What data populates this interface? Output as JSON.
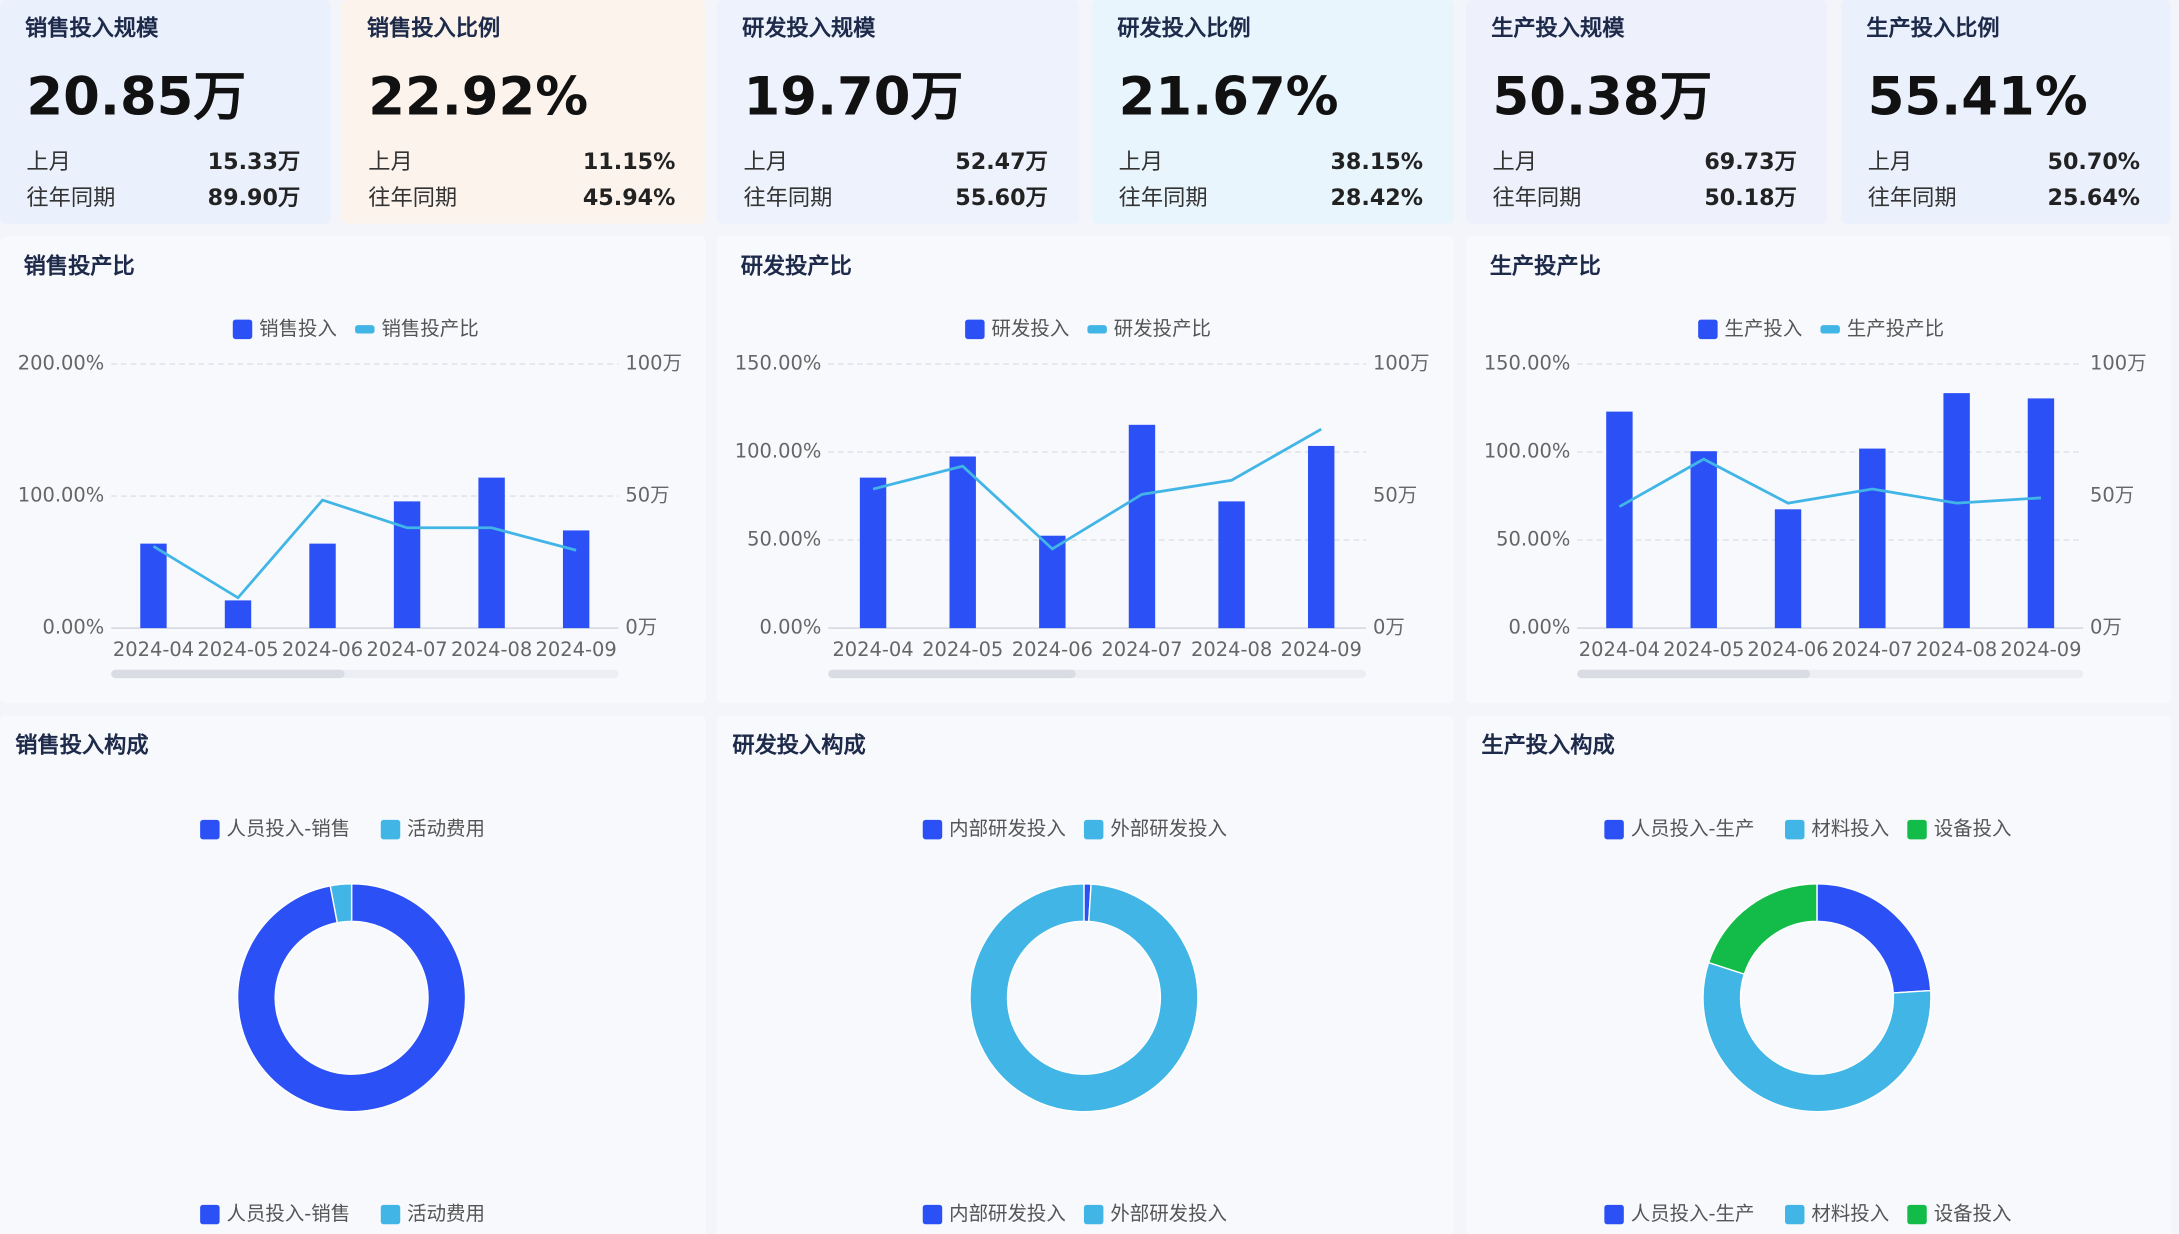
{
  "kpis": [
    {
      "title": "销售投入规模",
      "value": "20.85万",
      "prev_label": "上月",
      "prev": "15.33万",
      "yoy_label": "往年同期",
      "yoy": "89.90万"
    },
    {
      "title": "销售投入比例",
      "value": "22.92%",
      "prev_label": "上月",
      "prev": "11.15%",
      "yoy_label": "往年同期",
      "yoy": "45.94%"
    },
    {
      "title": "研发投入规模",
      "value": "19.70万",
      "prev_label": "上月",
      "prev": "52.47万",
      "yoy_label": "往年同期",
      "yoy": "55.60万"
    },
    {
      "title": "研发投入比例",
      "value": "21.67%",
      "prev_label": "上月",
      "prev": "38.15%",
      "yoy_label": "往年同期",
      "yoy": "28.42%"
    },
    {
      "title": "生产投入规模",
      "value": "50.38万",
      "prev_label": "上月",
      "prev": "69.73万",
      "yoy_label": "往年同期",
      "yoy": "50.18万"
    },
    {
      "title": "生产投入比例",
      "value": "55.41%",
      "prev_label": "上月",
      "prev": "50.70%",
      "yoy_label": "往年同期",
      "yoy": "25.64%"
    }
  ],
  "chart_data": [
    {
      "type": "combo",
      "title": "销售投产比",
      "categories": [
        "2024-04",
        "2024-05",
        "2024-06",
        "2024-07",
        "2024-08",
        "2024-09"
      ],
      "series": [
        {
          "name": "销售投入",
          "type": "bar",
          "axis": "y2",
          "color": "#2b50f5",
          "values": [
            32,
            10.5,
            32,
            48,
            57,
            37
          ]
        },
        {
          "name": "销售投产比",
          "type": "line",
          "color": "#41b6e6",
          "values": [
            62,
            23,
            97,
            76,
            76,
            59
          ]
        }
      ],
      "ylim": [
        0,
        200
      ],
      "yticks": [
        {
          "value": 0,
          "label": "0.00%"
        },
        {
          "value": 100,
          "label": "100.00%"
        },
        {
          "value": 200,
          "label": "200.00%"
        }
      ],
      "y2lim": [
        0,
        100
      ],
      "y2ticks": [
        {
          "value": 0,
          "label": "0万"
        },
        {
          "value": 50,
          "label": "50万"
        },
        {
          "value": 100,
          "label": "100万"
        }
      ],
      "grid": true
    },
    {
      "type": "combo",
      "title": "研发投产比",
      "categories": [
        "2024-04",
        "2024-05",
        "2024-06",
        "2024-07",
        "2024-08",
        "2024-09"
      ],
      "series": [
        {
          "name": "研发投入",
          "type": "bar",
          "axis": "y2",
          "color": "#2b50f5",
          "values": [
            57,
            65,
            35,
            77,
            48,
            69
          ]
        },
        {
          "name": "研发投产比",
          "type": "line",
          "color": "#41b6e6",
          "values": [
            79,
            92,
            45,
            76,
            84,
            113
          ]
        }
      ],
      "ylim": [
        0,
        150
      ],
      "yticks": [
        {
          "value": 0,
          "label": "0.00%"
        },
        {
          "value": 50,
          "label": "50.00%"
        },
        {
          "value": 100,
          "label": "100.00%"
        },
        {
          "value": 150,
          "label": "150.00%"
        }
      ],
      "y2lim": [
        0,
        100
      ],
      "y2ticks": [
        {
          "value": 0,
          "label": "0万"
        },
        {
          "value": 50,
          "label": "50万"
        },
        {
          "value": 100,
          "label": "100万"
        }
      ],
      "grid": true
    },
    {
      "type": "combo",
      "title": "生产投产比",
      "categories": [
        "2024-04",
        "2024-05",
        "2024-06",
        "2024-07",
        "2024-08",
        "2024-09"
      ],
      "series": [
        {
          "name": "生产投入",
          "type": "bar",
          "axis": "y2",
          "color": "#2b50f5",
          "values": [
            82,
            67,
            45,
            68,
            89,
            87
          ]
        },
        {
          "name": "生产投产比",
          "type": "line",
          "color": "#41b6e6",
          "values": [
            69,
            96,
            71,
            79,
            71,
            74
          ]
        }
      ],
      "ylim": [
        0,
        150
      ],
      "yticks": [
        {
          "value": 0,
          "label": "0.00%"
        },
        {
          "value": 50,
          "label": "50.00%"
        },
        {
          "value": 100,
          "label": "100.00%"
        },
        {
          "value": 150,
          "label": "150.00%"
        }
      ],
      "y2lim": [
        0,
        100
      ],
      "y2ticks": [
        {
          "value": 0,
          "label": "0万"
        },
        {
          "value": 50,
          "label": "50万"
        },
        {
          "value": 100,
          "label": "100万"
        }
      ],
      "grid": true
    },
    {
      "type": "pie",
      "title": "销售投入构成",
      "categories": [
        "人员投入-销售",
        "活动费用"
      ],
      "values": [
        97,
        3
      ],
      "colors": [
        "#2b50f5",
        "#41b6e6"
      ]
    },
    {
      "type": "pie",
      "title": "研发投入构成",
      "categories": [
        "内部研发投入",
        "外部研发投入"
      ],
      "values": [
        1,
        99
      ],
      "colors": [
        "#2b50f5",
        "#41b6e6"
      ]
    },
    {
      "type": "pie",
      "title": "生产投入构成",
      "categories": [
        "人员投入-生产",
        "材料投入",
        "设备投入"
      ],
      "values": [
        24,
        56,
        20
      ],
      "colors": [
        "#2b50f5",
        "#41b6e6",
        "#13bc48"
      ]
    }
  ]
}
